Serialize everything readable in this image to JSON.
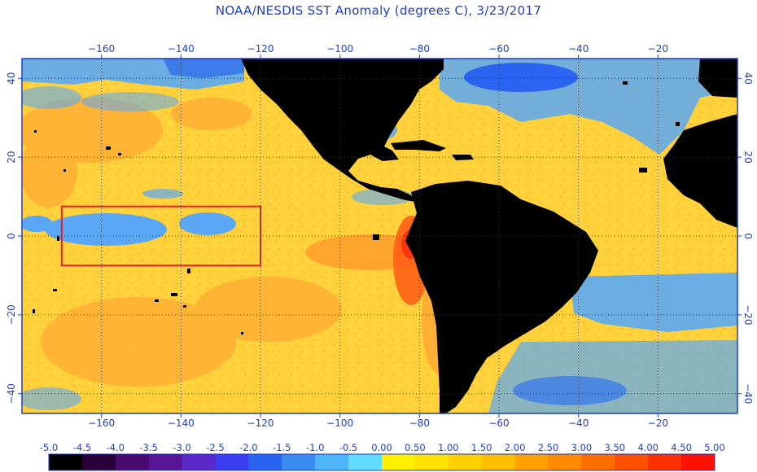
{
  "title": "NOAA/NESDIS SST Anomaly (degrees C), 3/23/2017",
  "map": {
    "lon_range": [
      -180,
      0
    ],
    "lat_range": [
      -45,
      45
    ],
    "lon_ticks": [
      -160,
      -140,
      -120,
      -100,
      -80,
      -60,
      -40,
      -20
    ],
    "lat_ticks_left": [
      40,
      20,
      0,
      -20,
      -40
    ],
    "lat_ticks_right": [
      40,
      20,
      0,
      -20,
      -40
    ],
    "grid": true,
    "highlight_box": {
      "lon": [
        -170,
        -120
      ],
      "lat": [
        -7.5,
        7.5
      ],
      "color": "#e02020"
    }
  },
  "colorbar": {
    "labels": [
      "-5.0",
      "-4.5",
      "-4.0",
      "-3.5",
      "-3.0",
      "-2.5",
      "-2.0",
      "-1.5",
      "-1.0",
      "-0.5",
      "0.00",
      "0.50",
      "1.00",
      "1.50",
      "2.00",
      "2.50",
      "3.00",
      "3.50",
      "4.00",
      "4.50",
      "5.00"
    ],
    "colors": [
      "#000000",
      "#2a0036",
      "#4a0a6e",
      "#5a1496",
      "#5a28c8",
      "#3c3cf0",
      "#2a64f0",
      "#3c8cf0",
      "#50b4f8",
      "#64dcff",
      "#fff000",
      "#ffe000",
      "#ffd000",
      "#ffbe00",
      "#ffa000",
      "#ff8a00",
      "#ff6e00",
      "#ff5000",
      "#ff3000",
      "#ff1000"
    ]
  },
  "colors": {
    "axis": "#1f3fbf",
    "land": "#000000",
    "ocean_warm": "#ffd23c",
    "ocean_hot": "#ff7a1e",
    "ocean_cool": "#5aa8f5"
  }
}
